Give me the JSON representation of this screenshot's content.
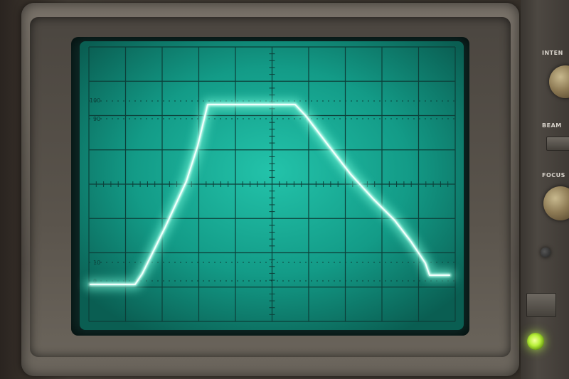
{
  "screen": {
    "graticule_labels": [
      "100",
      "90",
      "10",
      "0"
    ],
    "phosphor_color": "#7dffe0",
    "trace_color": "#c8fff2",
    "screen_color": "#1fb9a2"
  },
  "panel": {
    "labels": [
      "INTEN",
      "BEAM",
      "FOCUS"
    ],
    "led_color": "#b8f03a"
  }
}
